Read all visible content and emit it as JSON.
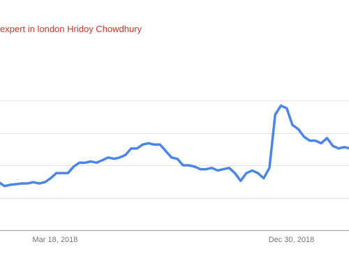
{
  "chart_data": {
    "type": "line",
    "title": "expert in london Hridoy Chowdhury",
    "title_color": "#d93025",
    "line_color": "#4a86e8",
    "grid": true,
    "ylim": [
      0,
      100
    ],
    "y_gridlines": [
      25,
      50,
      75,
      100
    ],
    "x_tick_labels": [
      {
        "label": "Mar 18, 2018",
        "index": 6
      },
      {
        "label": "Dec 30, 2018",
        "index": 47
      }
    ],
    "series": [
      {
        "values": [
          38,
          37,
          34,
          35,
          35.5,
          36,
          36,
          37,
          36,
          37,
          40,
          44,
          44,
          44,
          49,
          52,
          52,
          53,
          52,
          54,
          56,
          55,
          56,
          58,
          63,
          63,
          66,
          67,
          66,
          66,
          61,
          56,
          55,
          50,
          50,
          49,
          47,
          47,
          48,
          46,
          47,
          48,
          44,
          38,
          44,
          46,
          44,
          40,
          48,
          89,
          96,
          94,
          81,
          78,
          72,
          69,
          69,
          67,
          71,
          65,
          63,
          64,
          63,
          61,
          59
        ]
      }
    ]
  }
}
